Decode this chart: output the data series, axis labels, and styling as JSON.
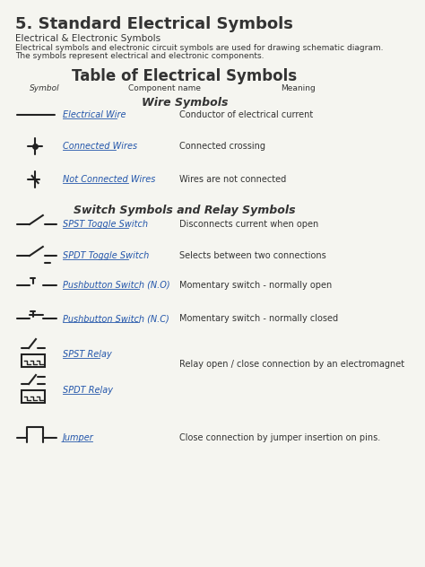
{
  "title_main": "5. Standard Electrical Symbols",
  "subtitle1": "Electrical & Electronic Symbols",
  "subtitle2": "Electrical symbols and electronic circuit symbols are used for drawing schematic diagram.",
  "subtitle3": "The symbols represent electrical and electronic components.",
  "table_title": "Table of Electrical Symbols",
  "col_headers": [
    "Symbol",
    "Component name",
    "Meaning"
  ],
  "section1": "Wire Symbols",
  "section2": "Switch Symbols and Relay Symbols",
  "rows": [
    {
      "symbol_type": "wire",
      "name": "Electrical Wire",
      "meaning": "Conductor of electrical current"
    },
    {
      "symbol_type": "connected_wires",
      "name": "Connected Wires",
      "meaning": "Connected crossing"
    },
    {
      "symbol_type": "not_connected_wires",
      "name": "Not Connected Wires",
      "meaning": "Wires are not connected"
    },
    {
      "symbol_type": "spst_switch",
      "name": "SPST Toggle Switch",
      "meaning": "Disconnects current when open"
    },
    {
      "symbol_type": "spdt_switch",
      "name": "SPDT Toggle Switch",
      "meaning": "Selects between two connections"
    },
    {
      "symbol_type": "pushbutton_no",
      "name": "Pushbutton Switch (N.O)",
      "meaning": "Momentary switch - normally open"
    },
    {
      "symbol_type": "pushbutton_nc",
      "name": "Pushbutton Switch (N.C)",
      "meaning": "Momentary switch - normally closed"
    },
    {
      "symbol_type": "spst_relay",
      "name": "SPST Relay",
      "meaning": "Relay open / close connection by an electromagnet"
    },
    {
      "symbol_type": "spdt_relay",
      "name": "SPDT Relay",
      "meaning": ""
    },
    {
      "symbol_type": "jumper",
      "name": "Jumper",
      "meaning": "Close connection by jumper insertion on pins."
    }
  ],
  "bg_color": "#f5f5f0",
  "text_color": "#333333",
  "symbol_color": "#222222",
  "link_color": "#2255aa"
}
